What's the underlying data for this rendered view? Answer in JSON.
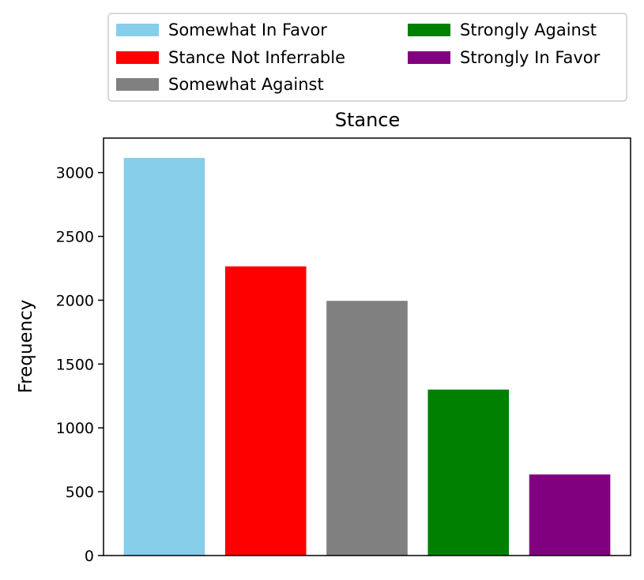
{
  "chart_data": {
    "type": "bar",
    "title": "Stance",
    "xlabel": "",
    "ylabel": "Frequency",
    "categories": [
      "Somewhat In Favor",
      "Stance Not Inferrable",
      "Somewhat Against",
      "Strongly Against",
      "Strongly In Favor"
    ],
    "values": [
      3115,
      2265,
      1995,
      1300,
      635
    ],
    "colors": [
      "#87ceeb",
      "#ff0000",
      "#808080",
      "#008000",
      "#800080"
    ],
    "ylim": [
      0,
      3270
    ],
    "yticks": [
      0,
      500,
      1000,
      1500,
      2000,
      2500,
      3000
    ],
    "xticks_shown": false,
    "grid": false,
    "legend": {
      "placement": "top-center, above plot",
      "columns": 2,
      "entries": [
        "Somewhat In Favor",
        "Stance Not Inferrable",
        "Somewhat Against",
        "Strongly Against",
        "Strongly In Favor"
      ]
    }
  }
}
